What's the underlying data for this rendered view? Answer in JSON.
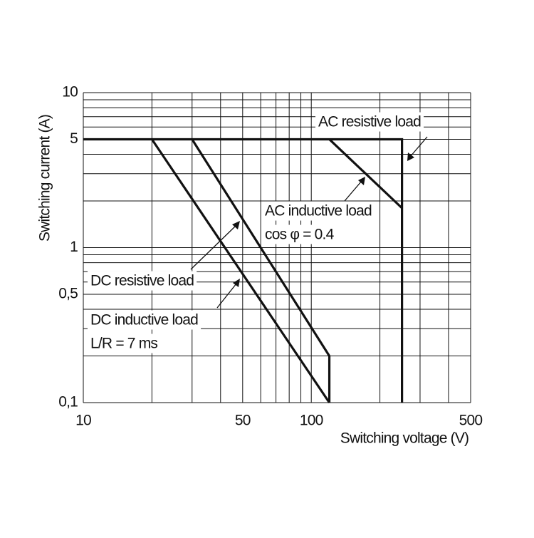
{
  "chart_data": {
    "type": "line",
    "log_x": true,
    "log_y": true,
    "grid": true,
    "xlabel": "Switching voltage (V)",
    "ylabel": "Switching current (A)",
    "xlim": [
      10,
      500
    ],
    "ylim": [
      0.1,
      10
    ],
    "xticks": [
      10,
      50,
      100,
      500
    ],
    "yticks": [
      {
        "value": 0.1,
        "label": "0,1"
      },
      {
        "value": 0.5,
        "label": "0,5"
      },
      1,
      5,
      10
    ],
    "xminor": [
      20,
      30,
      40,
      60,
      70,
      80,
      90,
      200,
      300,
      400
    ],
    "yminor": [
      0.2,
      0.3,
      0.4,
      0.6,
      0.7,
      0.8,
      0.9,
      2,
      3,
      4,
      6,
      7,
      8,
      9
    ],
    "series": [
      {
        "name": "AC resistive load",
        "color": "#111111",
        "x": [
          10,
          250,
          250
        ],
        "values": [
          5,
          5,
          0.1
        ]
      },
      {
        "name": "AC inductive load",
        "color": "#111111",
        "x": [
          120,
          250
        ],
        "values": [
          5,
          1.8
        ]
      },
      {
        "name": "DC resistive load",
        "color": "#111111",
        "x": [
          30,
          120,
          120
        ],
        "values": [
          5,
          0.2,
          0.1
        ]
      },
      {
        "name": "DC inductive load",
        "color": "#111111",
        "x": [
          20,
          120
        ],
        "values": [
          5,
          0.1
        ]
      }
    ],
    "annotations": [
      "cos φ = 0.4",
      "L/R = 7 ms"
    ]
  }
}
